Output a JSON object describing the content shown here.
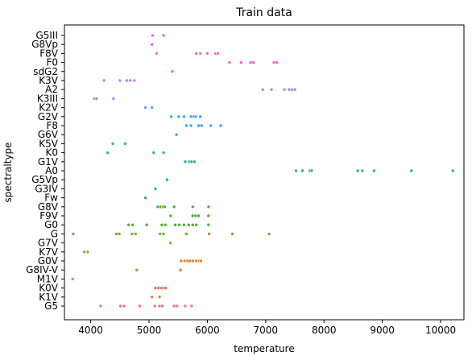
{
  "chart_data": {
    "type": "scatter",
    "title": "Train data",
    "xlabel": "temperature",
    "ylabel": "spectraltype",
    "xlim": [
      3550,
      10400
    ],
    "xticks": [
      4000,
      5000,
      6000,
      7000,
      8000,
      9000,
      10000
    ],
    "grid": false,
    "legend": "none",
    "categories": [
      "G5III",
      "G8Vp",
      "F8V",
      "F0",
      "sdG2",
      "K3V",
      "A2",
      "K3III",
      "K2V",
      "G2V",
      "F8",
      "G6V",
      "K5V",
      "K0",
      "G1V",
      "A0",
      "G5Vp",
      "G3IV",
      "Fw",
      "G8V",
      "F9V",
      "G0",
      "G",
      "G7V",
      "K7V",
      "G0V",
      "G8IV-V",
      "M1V",
      "K0V",
      "K1V",
      "G5"
    ],
    "colors": [
      "#f77189",
      "#f7754f",
      "#dc8932",
      "#ae9d31",
      "#97a431",
      "#77ab31",
      "#33b07a",
      "#35ae93",
      "#37abb5",
      "#3ba3ec",
      "#a48cf4",
      "#cc7af4",
      "#f45cf2",
      "#f66bad",
      "#e87d2d",
      "#f47c69"
    ],
    "series": [
      {
        "category": "G5III",
        "color": "#f565cc",
        "x": [
          5060,
          5250
        ]
      },
      {
        "category": "G8Vp",
        "color": "#f565cc",
        "x": [
          5050
        ]
      },
      {
        "category": "F8V",
        "color": "#f565cc",
        "x": [
          5130,
          5810,
          5880,
          6000,
          6140,
          6180
        ]
      },
      {
        "category": "F0",
        "color": "#f565cc",
        "x": [
          6380,
          6580,
          6740,
          6790,
          7140,
          7190
        ]
      },
      {
        "category": "sdG2",
        "color": "#f565cc",
        "x": [
          5400
        ]
      },
      {
        "category": "K3V",
        "color": "#cc7af4",
        "x": [
          4230,
          4500,
          4620,
          4680,
          4750
        ]
      },
      {
        "category": "A2",
        "color": "#a48cf4",
        "x": [
          6950,
          7100,
          7320,
          7400,
          7450,
          7500
        ]
      },
      {
        "category": "K3III",
        "color": "#8b93f4",
        "x": [
          4060,
          4100,
          4390
        ]
      },
      {
        "category": "K2V",
        "color": "#6c9df0",
        "x": [
          4940,
          5050
        ]
      },
      {
        "category": "G2V",
        "color": "#3ba3ec",
        "x": [
          5380,
          5510,
          5600,
          5720,
          5770,
          5800,
          5880
        ]
      },
      {
        "category": "F8",
        "color": "#3ba3ec",
        "x": [
          5640,
          5720,
          5850,
          5900,
          6060,
          6230
        ]
      },
      {
        "category": "G6V",
        "color": "#37abb5",
        "x": [
          5470
        ]
      },
      {
        "category": "K5V",
        "color": "#37abb5",
        "x": [
          4380,
          4590
        ]
      },
      {
        "category": "K0",
        "color": "#37abb5",
        "x": [
          4290,
          5080,
          5250
        ]
      },
      {
        "category": "G1V",
        "color": "#36ad9d",
        "x": [
          5620,
          5690,
          5730,
          5780
        ]
      },
      {
        "category": "A0",
        "color": "#35ae93",
        "x": [
          7520,
          7630,
          7760,
          7790,
          8580,
          8660,
          8860,
          9500,
          10210
        ]
      },
      {
        "category": "G5Vp",
        "color": "#33b07a",
        "x": [
          5310
        ]
      },
      {
        "category": "G3IV",
        "color": "#33b07a",
        "x": [
          5110
        ]
      },
      {
        "category": "Fw",
        "color": "#33b07a",
        "x": [
          4940
        ]
      },
      {
        "category": "G8V",
        "color": "#4fb031",
        "x": [
          5150,
          5200,
          5240,
          5270,
          5430,
          5750,
          6020
        ]
      },
      {
        "category": "F9V",
        "color": "#4fb031",
        "x": [
          5370,
          5750,
          5800,
          5850,
          6020
        ]
      },
      {
        "category": "G0",
        "color": "#4fb031",
        "x": [
          4650,
          4720,
          4960,
          5220,
          5280,
          5450,
          5520,
          5600,
          5680,
          5750,
          5810,
          6020
        ]
      },
      {
        "category": "G",
        "color": "#77ab31",
        "x": [
          3700,
          4440,
          4490,
          4710,
          4770,
          5190,
          5250,
          5640,
          6030,
          6430,
          7060
        ]
      },
      {
        "category": "G7V",
        "color": "#97a431",
        "x": [
          5370
        ]
      },
      {
        "category": "K7V",
        "color": "#ae9d31",
        "x": [
          3890,
          3950
        ]
      },
      {
        "category": "G0V",
        "color": "#dc8932",
        "x": [
          5550,
          5610,
          5660,
          5700,
          5750,
          5810,
          5860,
          5890
        ]
      },
      {
        "category": "G8IV-V",
        "color": "#e87d2d",
        "x": [
          4790,
          5540
        ]
      },
      {
        "category": "M1V",
        "color": "#f47c69",
        "x": [
          3690
        ]
      },
      {
        "category": "K0V",
        "color": "#f7754f",
        "x": [
          5110,
          5160,
          5210,
          5250,
          5290
        ]
      },
      {
        "category": "K1V",
        "color": "#f7754f",
        "x": [
          5050,
          5180
        ]
      },
      {
        "category": "G5",
        "color": "#f77189",
        "x": [
          4170,
          4510,
          4570,
          4840,
          5100,
          5180,
          5230,
          5430,
          5480,
          5620,
          5730
        ]
      }
    ]
  }
}
